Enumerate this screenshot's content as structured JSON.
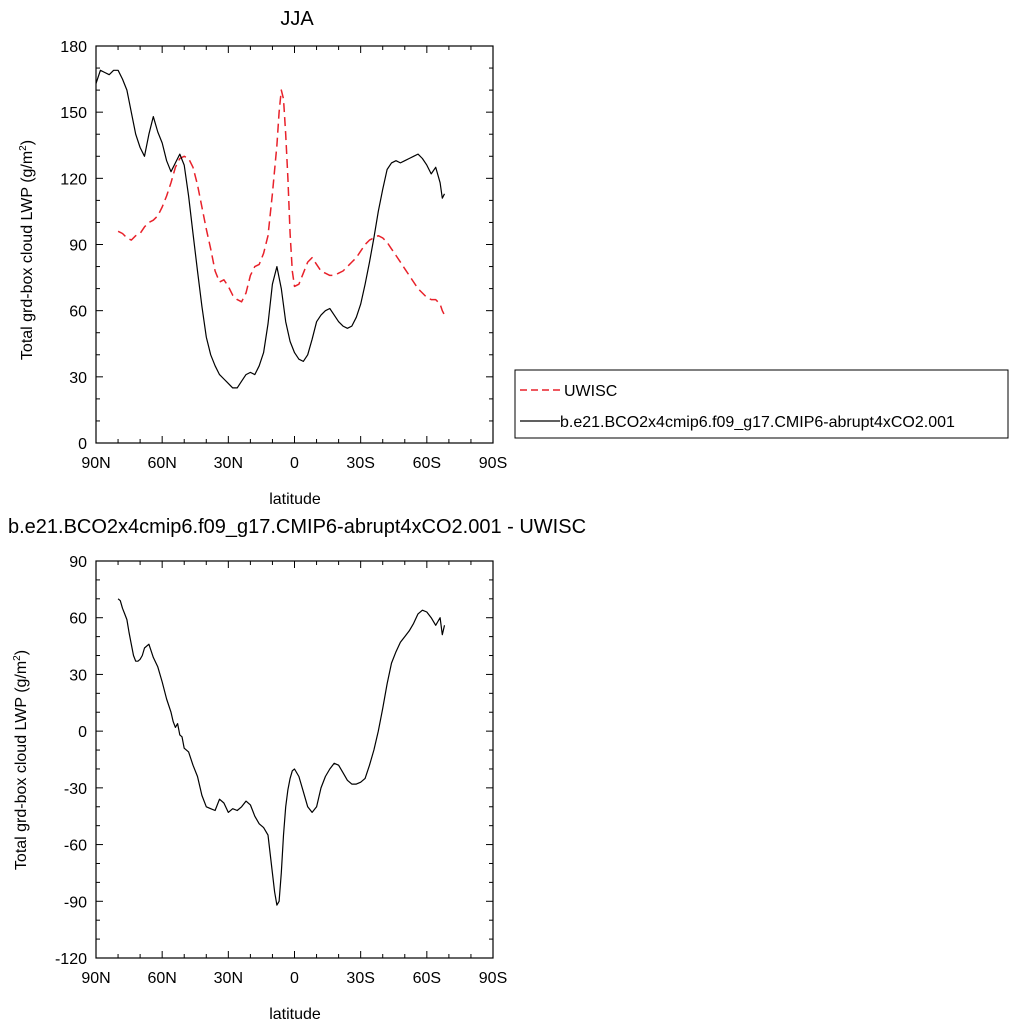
{
  "chart_data": [
    {
      "type": "line",
      "title": "JJA",
      "xlabel": "latitude",
      "ylabel": "Total grd-box cloud LWP (g/m",
      "ylabel_sup": "2",
      "ylabel_close": ")",
      "xlim": [
        90,
        -90
      ],
      "ylim": [
        0,
        180
      ],
      "x_ticks": [
        90,
        60,
        30,
        0,
        -30,
        -60,
        -90
      ],
      "x_tick_labels": [
        "90N",
        "60N",
        "30N",
        "0",
        "30S",
        "60S",
        "90S"
      ],
      "y_ticks": [
        0,
        30,
        60,
        90,
        120,
        150,
        180
      ],
      "y_tick_labels": [
        "0",
        "30",
        "60",
        "90",
        "120",
        "150",
        "180"
      ],
      "legend_position": "outside-right",
      "series": [
        {
          "name": "UWISC",
          "color": "#e8212a",
          "dash": "dashed",
          "x": [
            80,
            78,
            76,
            74,
            72,
            70,
            68,
            66,
            64,
            62,
            60,
            58,
            56,
            54,
            52,
            50,
            48,
            46,
            44,
            42,
            40,
            38,
            36,
            34,
            32,
            30,
            28,
            26,
            24,
            22,
            20,
            18,
            16,
            14,
            12,
            10,
            8,
            7,
            6,
            5,
            4,
            3,
            2,
            1,
            0,
            -2,
            -4,
            -6,
            -8,
            -10,
            -12,
            -14,
            -16,
            -18,
            -20,
            -22,
            -24,
            -26,
            -28,
            -30,
            -32,
            -34,
            -36,
            -38,
            -40,
            -42,
            -44,
            -46,
            -48,
            -50,
            -52,
            -54,
            -56,
            -58,
            -60,
            -62,
            -64,
            -66,
            -67,
            -68
          ],
          "y": [
            96,
            95,
            93,
            92,
            94,
            95,
            98,
            100,
            101,
            103,
            107,
            112,
            118,
            125,
            129,
            130,
            129,
            125,
            117,
            107,
            97,
            88,
            78,
            73,
            74,
            71,
            67,
            65,
            64,
            68,
            76,
            80,
            81,
            86,
            94,
            113,
            135,
            150,
            160,
            156,
            140,
            120,
            95,
            78,
            71,
            72,
            77,
            82,
            84,
            81,
            78,
            77,
            76,
            76,
            77,
            78,
            80,
            82,
            84,
            87,
            90,
            92,
            93,
            94,
            93,
            91,
            88,
            85,
            82,
            79,
            76,
            73,
            70,
            68,
            66,
            65,
            65,
            63,
            60,
            58
          ]
        },
        {
          "name": "b.e21.BCO2x4cmip6.f09_g17.CMIP6-abrupt4xCO2.001",
          "color": "#000000",
          "dash": "solid",
          "x": [
            90,
            88,
            86,
            84,
            82,
            80,
            78,
            76,
            74,
            72,
            70,
            68,
            66,
            64,
            62,
            60,
            58,
            56,
            54,
            52,
            50,
            48,
            46,
            44,
            42,
            40,
            38,
            36,
            34,
            32,
            30,
            28,
            26,
            24,
            22,
            20,
            18,
            16,
            14,
            12,
            10,
            8,
            6,
            4,
            2,
            0,
            -2,
            -4,
            -6,
            -8,
            -10,
            -12,
            -14,
            -16,
            -18,
            -20,
            -22,
            -24,
            -26,
            -28,
            -30,
            -32,
            -34,
            -36,
            -38,
            -40,
            -42,
            -44,
            -46,
            -48,
            -50,
            -52,
            -54,
            -56,
            -58,
            -60,
            -62,
            -64,
            -66,
            -67,
            -68
          ],
          "y": [
            163,
            169,
            168,
            167,
            169,
            169,
            165,
            160,
            150,
            140,
            134,
            130,
            140,
            148,
            141,
            136,
            128,
            123,
            127,
            131,
            126,
            112,
            95,
            78,
            62,
            48,
            40,
            35,
            31,
            29,
            27,
            25,
            25,
            28,
            31,
            32,
            31,
            35,
            41,
            54,
            72,
            80,
            70,
            55,
            46,
            41,
            38,
            37,
            40,
            47,
            55,
            58,
            60,
            61,
            58,
            55,
            53,
            52,
            53,
            57,
            63,
            72,
            82,
            93,
            105,
            115,
            124,
            127,
            128,
            127,
            128,
            129,
            130,
            131,
            129,
            126,
            122,
            125,
            118,
            111,
            113
          ]
        }
      ]
    },
    {
      "type": "line",
      "title": "b.e21.BCO2x4cmip6.f09_g17.CMIP6-abrupt4xCO2.001 - UWISC",
      "xlabel": "latitude",
      "ylabel": "Total grd-box cloud LWP (g/m",
      "ylabel_sup": "2",
      "ylabel_close": ")",
      "xlim": [
        90,
        -90
      ],
      "ylim": [
        -120,
        90
      ],
      "x_ticks": [
        90,
        60,
        30,
        0,
        -30,
        -60,
        -90
      ],
      "x_tick_labels": [
        "90N",
        "60N",
        "30N",
        "0",
        "30S",
        "60S",
        "90S"
      ],
      "y_ticks": [
        -120,
        -90,
        -60,
        -30,
        0,
        30,
        60,
        90
      ],
      "y_tick_labels": [
        "-120",
        "-90",
        "-60",
        "-30",
        "0",
        "30",
        "60",
        "90"
      ],
      "series": [
        {
          "color": "#000000",
          "dash": "solid",
          "x": [
            80,
            79,
            78,
            77,
            76,
            75,
            74,
            73,
            72,
            71,
            70,
            69,
            68,
            66,
            64,
            62,
            60,
            58,
            56,
            55,
            54,
            53,
            52,
            51,
            50,
            48,
            46,
            44,
            42,
            40,
            38,
            36,
            34,
            32,
            30,
            28,
            26,
            24,
            22,
            20,
            18,
            16,
            14,
            12,
            11,
            10,
            9,
            8,
            7,
            6,
            5,
            4,
            3,
            2,
            1,
            0,
            -2,
            -4,
            -6,
            -8,
            -10,
            -12,
            -14,
            -16,
            -18,
            -20,
            -22,
            -24,
            -26,
            -28,
            -30,
            -32,
            -34,
            -36,
            -38,
            -40,
            -42,
            -44,
            -46,
            -48,
            -50,
            -52,
            -54,
            -56,
            -58,
            -60,
            -62,
            -64,
            -65,
            -66,
            -67,
            -68
          ],
          "y": [
            70,
            69,
            65,
            62,
            59,
            52,
            46,
            40,
            37,
            37,
            38,
            40,
            44,
            46,
            39,
            34,
            26,
            17,
            10,
            5,
            2,
            4,
            -2,
            -3,
            -9,
            -11,
            -18,
            -24,
            -34,
            -40,
            -41,
            -42,
            -36,
            -38,
            -43,
            -41,
            -42,
            -40,
            -37,
            -39,
            -45,
            -49,
            -51,
            -55,
            -65,
            -75,
            -85,
            -92,
            -90,
            -75,
            -55,
            -40,
            -31,
            -25,
            -21,
            -20,
            -24,
            -32,
            -40,
            -43,
            -40,
            -30,
            -24,
            -20,
            -17,
            -18,
            -22,
            -26,
            -28,
            -28,
            -27,
            -25,
            -18,
            -10,
            0,
            12,
            25,
            36,
            42,
            47,
            50,
            53,
            57,
            62,
            64,
            63,
            60,
            56,
            58,
            60,
            51,
            56
          ]
        }
      ]
    }
  ]
}
